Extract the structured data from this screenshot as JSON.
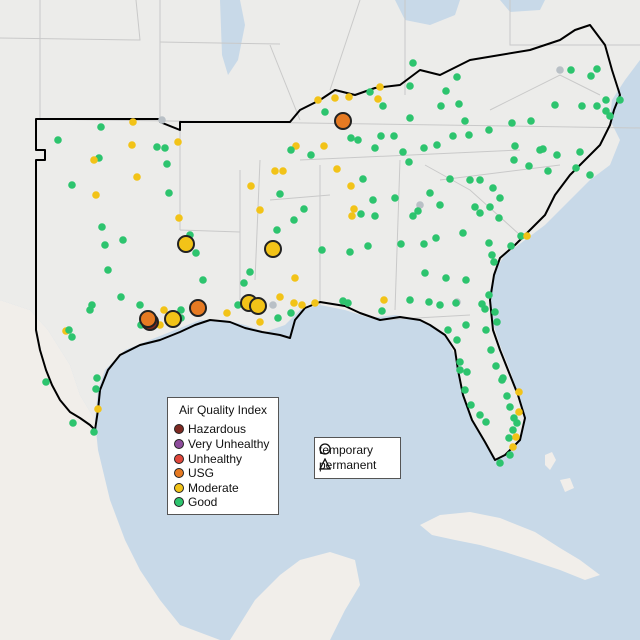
{
  "colors": {
    "water": "#c8d9e8",
    "land_us": "#ececec",
    "land_other": "#f3f0ec",
    "terrain": "#e4e0da",
    "hazardous": "#7e2a22",
    "very_unhealthy": "#8e4c9c",
    "unhealthy": "#e0473b",
    "usg": "#e67a22",
    "moderate": "#f2c318",
    "good": "#2dc46e",
    "nodata": "#b9c0c6"
  },
  "aqi_legend": {
    "title": "Air Quality Index",
    "items": [
      {
        "label": "Hazardous",
        "color": "#7e2a22"
      },
      {
        "label": "Very Unhealthy",
        "color": "#8e4c9c"
      },
      {
        "label": "Unhealthy",
        "color": "#e0473b"
      },
      {
        "label": "USG",
        "color": "#e67a22"
      },
      {
        "label": "Moderate",
        "color": "#f2c318"
      },
      {
        "label": "Good",
        "color": "#2dc46e"
      }
    ]
  },
  "type_legend": {
    "temporary_label": "temporary",
    "permanent_label": "permanent"
  }
}
